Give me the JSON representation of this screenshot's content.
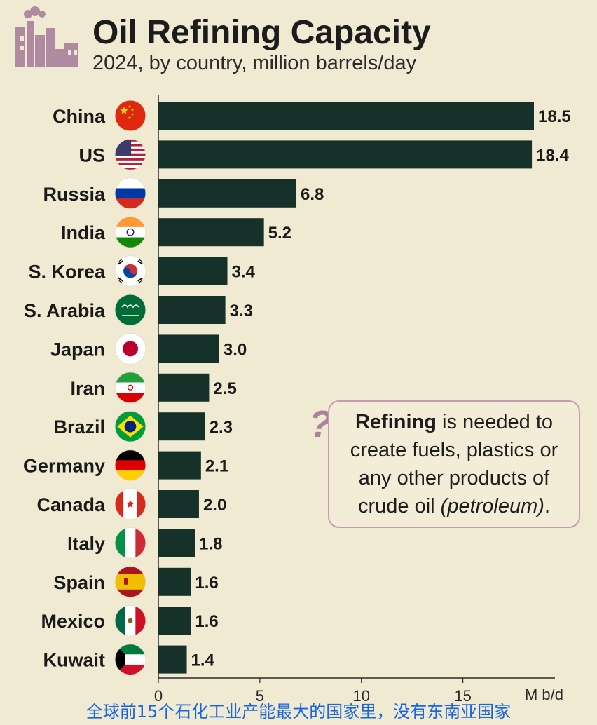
{
  "chart_data": {
    "type": "bar",
    "orientation": "horizontal",
    "title": "Oil Refining Capacity",
    "subtitle": "2024, by country, million barrels/day",
    "categories": [
      "China",
      "US",
      "Russia",
      "India",
      "S. Korea",
      "S. Arabia",
      "Japan",
      "Iran",
      "Brazil",
      "Germany",
      "Canada",
      "Italy",
      "Spain",
      "Mexico",
      "Kuwait"
    ],
    "values": [
      18.5,
      18.4,
      6.8,
      5.2,
      3.4,
      3.3,
      3.0,
      2.5,
      2.3,
      2.1,
      2.0,
      1.8,
      1.6,
      1.6,
      1.4
    ],
    "value_labels": [
      "18.5",
      "18.4",
      "6.8",
      "5.2",
      "3.4",
      "3.3",
      "3.0",
      "2.5",
      "2.3",
      "2.1",
      "2.0",
      "1.8",
      "1.6",
      "1.6",
      "1.4"
    ],
    "xlim": [
      0,
      18.5
    ],
    "xticks": [
      0,
      5,
      10,
      15
    ],
    "xtick_labels": [
      "0",
      "5",
      "10",
      "15"
    ],
    "unit_label": "M b/d",
    "flags": [
      "china-flag-icon",
      "us-flag-icon",
      "russia-flag-icon",
      "india-flag-icon",
      "south-korea-flag-icon",
      "saudi-arabia-flag-icon",
      "japan-flag-icon",
      "iran-flag-icon",
      "brazil-flag-icon",
      "germany-flag-icon",
      "canada-flag-icon",
      "italy-flag-icon",
      "spain-flag-icon",
      "mexico-flag-icon",
      "kuwait-flag-icon"
    ],
    "bar_color": "#16302a",
    "background_color": "#f1ead3",
    "grid": false,
    "legend": "none"
  },
  "note": {
    "bold": "Refining",
    "text_1": " is needed to create fuels, plastics or any other products of crude oil ",
    "italic": "(petroleum)",
    "text_2": "."
  },
  "caption": "全球前15个石化工业产能最大的国家里，没有东南亚国家",
  "icons": {
    "header": "refinery-icon",
    "note": "question-mark-icon"
  }
}
